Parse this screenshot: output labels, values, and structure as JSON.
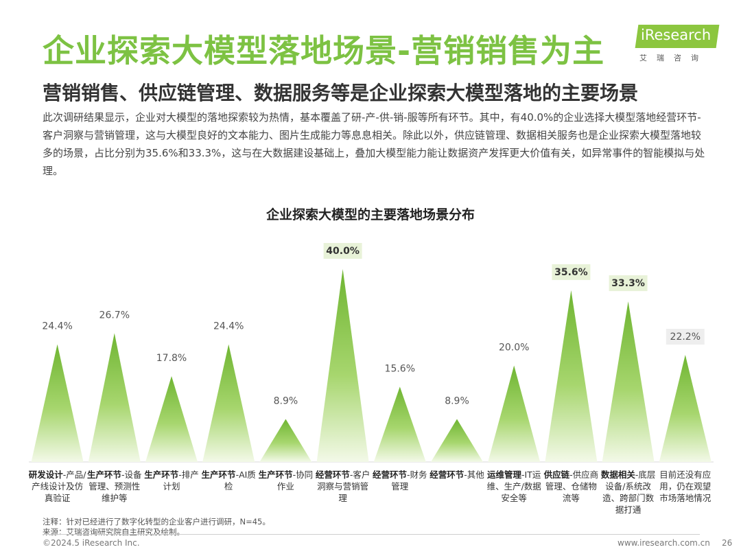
{
  "header": {
    "title": "企业探索大模型落地场景-营销销售为主",
    "subtitle": "营销销售、供应链管理、数据服务等是企业探索大模型落地的主要场景",
    "description": "此次调研结果显示，企业对大模型的落地探索较为热情，基本覆盖了研-产-供-销-服等所有环节。其中，有40.0%的企业选择大模型落地经营环节-客户洞察与营销管理，这与大模型良好的文本能力、图片生成能力等息息相关。除此以外，供应链管理、数据相关服务也是企业探索大模型落地较多的场景，占比分别为35.6%和33.3%，这与在大数据建设基础上，叠加大模型能力能让数据资产发挥更大价值有关，如异常事件的智能模拟与处理。"
  },
  "logo": {
    "text": "iResearch",
    "sub": "艾瑞咨询"
  },
  "chart_data": {
    "type": "bar",
    "title": "企业探索大模型的主要落地场景分布",
    "unit": "%",
    "ylim": [
      0,
      40
    ],
    "categories": [
      {
        "bold": "研发设计",
        "rest": "-产品/产线设计及仿真验证"
      },
      {
        "bold": "生产环节",
        "rest": "-设备管理、预测性维护等"
      },
      {
        "bold": "生产环节",
        "rest": "-排产计划"
      },
      {
        "bold": "生产环节",
        "rest": "-AI质检"
      },
      {
        "bold": "生产环节",
        "rest": "-协同作业"
      },
      {
        "bold": "经营环节",
        "rest": "-客户洞察与营销管理"
      },
      {
        "bold": "经营环节",
        "rest": "-财务管理"
      },
      {
        "bold": "经营环节",
        "rest": "-其他"
      },
      {
        "bold": "运维管理",
        "rest": "-IT运维、生产/数据安全等"
      },
      {
        "bold": "供应链",
        "rest": "-供应商管理、仓储物流等"
      },
      {
        "bold": "数据相关",
        "rest": "-底层设备/系统改造、跨部门数据打通"
      },
      {
        "bold": "",
        "rest": "目前还没有应用，仍在观望市场落地情况"
      }
    ],
    "values": [
      24.4,
      26.7,
      17.8,
      24.4,
      8.9,
      40.0,
      15.6,
      8.9,
      20.0,
      35.6,
      33.3,
      22.2
    ],
    "labels": [
      "24.4%",
      "26.7%",
      "17.8%",
      "24.4%",
      "8.9%",
      "40.0%",
      "15.6%",
      "8.9%",
      "20.0%",
      "35.6%",
      "33.3%",
      "22.2%"
    ],
    "highlighted": [
      "40.0%",
      "35.6%",
      "33.3%"
    ],
    "colors": {
      "bar_top": "#7cc03f",
      "bar_bottom": "#f2f8e6",
      "highlight_bg": "#e8f2d8",
      "muted_bg": "#eeeeee"
    }
  },
  "notes": {
    "note": "注释：针对已经进行了数字化转型的企业客户进行调研，N=45。",
    "source": "来源：艾瑞咨询研究院自主研究及绘制。"
  },
  "footer": {
    "copyright": "©2024.5 iResearch Inc.",
    "url": "www.iresearch.com.cn",
    "page": "26"
  }
}
